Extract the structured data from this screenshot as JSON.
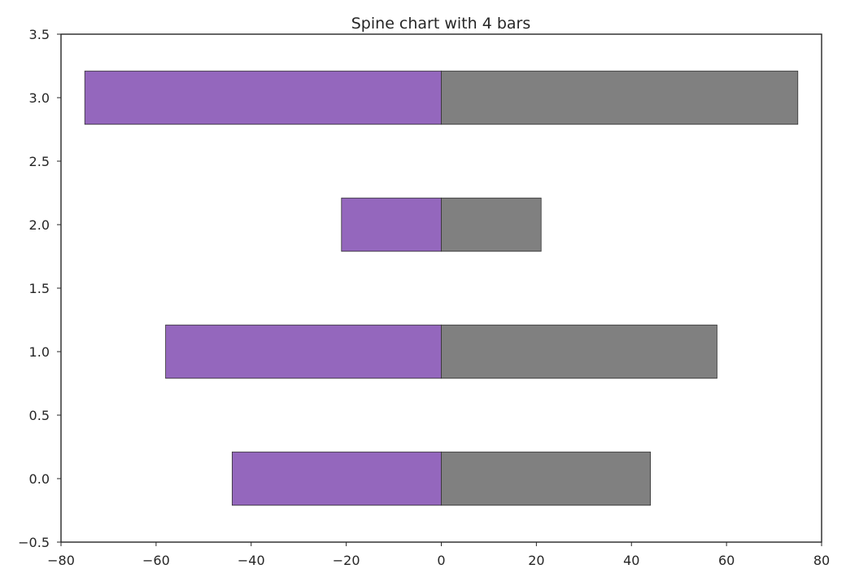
{
  "chart_data": {
    "type": "bar",
    "orientation": "horizontal",
    "title": "Spine chart with 4 bars",
    "xlabel": "",
    "ylabel": "",
    "xlim": [
      -80,
      80
    ],
    "ylim": [
      -0.5,
      3.5
    ],
    "grid": false,
    "categories": [
      0,
      1,
      2,
      3
    ],
    "series": [
      {
        "values": [
          -44,
          -58,
          -21,
          -75
        ],
        "color": "#9467bd"
      },
      {
        "values": [
          44,
          58,
          21,
          75
        ],
        "color": "#808080"
      }
    ],
    "bar_height": 0.42,
    "x_ticks": [
      -80,
      -60,
      -40,
      -20,
      0,
      20,
      40,
      60,
      80
    ],
    "x_tick_labels": [
      "−80",
      "−60",
      "−40",
      "−20",
      "0",
      "20",
      "40",
      "60",
      "80"
    ],
    "y_ticks": [
      -0.5,
      0,
      0.5,
      1,
      1.5,
      2,
      2.5,
      3,
      3.5
    ],
    "y_tick_labels": [
      "−0.5",
      "0.0",
      "0.5",
      "1.0",
      "1.5",
      "2.0",
      "2.5",
      "3.0",
      "3.5"
    ]
  }
}
